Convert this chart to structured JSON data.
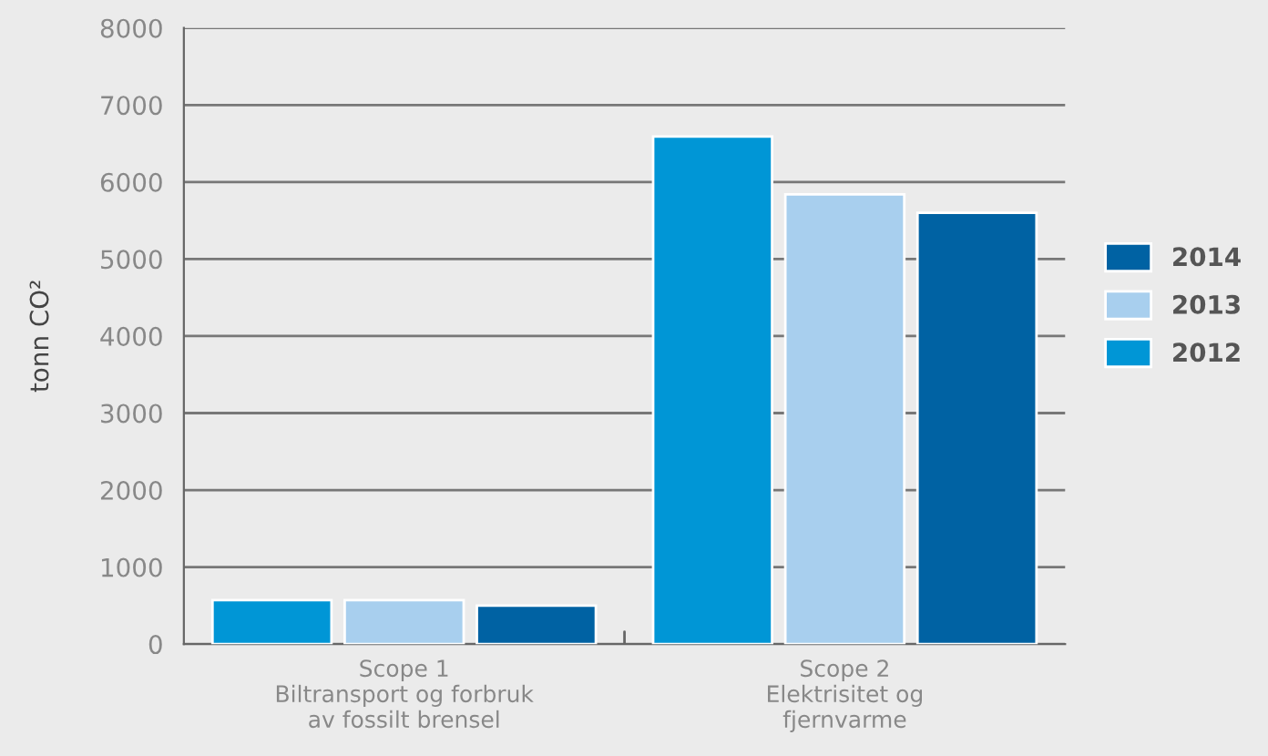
{
  "chart_data": {
    "type": "bar",
    "ylabel": "tonn CO²",
    "categories": [
      "Scope 1\nBiltransport og forbruk\nav fossilt brensel",
      "Scope 2\nElektrisitet og\nfjernvarme"
    ],
    "series": [
      {
        "name": "2012",
        "color": "#0096d6",
        "values": [
          570,
          6590
        ]
      },
      {
        "name": "2013",
        "color": "#a8cfee",
        "values": [
          570,
          5840
        ]
      },
      {
        "name": "2014",
        "color": "#0062a3",
        "values": [
          500,
          5600
        ]
      }
    ],
    "ylim": [
      0,
      8000
    ],
    "yticks": [
      0,
      1000,
      2000,
      3000,
      4000,
      5000,
      6000,
      7000,
      8000
    ],
    "grid": "y",
    "legend": "right"
  }
}
